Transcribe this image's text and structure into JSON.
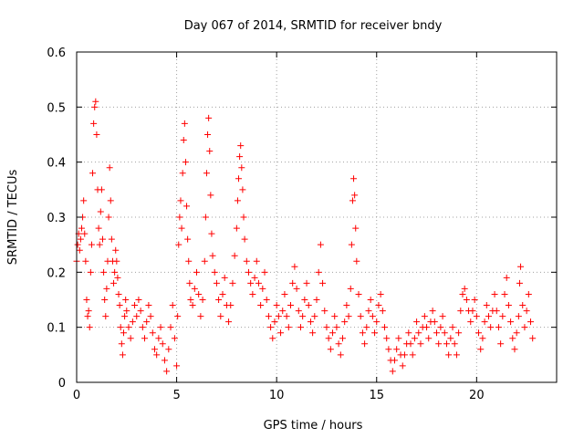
{
  "chart_data": {
    "type": "scatter",
    "title": "Day 067 of 2014, SRMTID for receiver bndy",
    "xlabel": "GPS time / hours",
    "ylabel": "SRMTID / TECUs",
    "xlim": [
      0,
      24
    ],
    "ylim": [
      0,
      0.6
    ],
    "xticks": [
      0,
      5,
      10,
      15,
      20
    ],
    "xtick_labels": [
      "0",
      "5",
      "10",
      "15",
      "20"
    ],
    "yticks": [
      0,
      0.1,
      0.2,
      0.3,
      0.4,
      0.5,
      0.6
    ],
    "ytick_labels": [
      "0",
      "0.1",
      "0.2",
      "0.3",
      "0.4",
      "0.5",
      "0.6"
    ],
    "grid": true,
    "marker": "plus",
    "series": [
      {
        "name": "SRMTID",
        "color": "#ff0000",
        "points": [
          [
            0.0,
            0.22
          ],
          [
            0.05,
            0.25
          ],
          [
            0.1,
            0.27
          ],
          [
            0.15,
            0.24
          ],
          [
            0.2,
            0.26
          ],
          [
            0.25,
            0.28
          ],
          [
            0.3,
            0.3
          ],
          [
            0.35,
            0.33
          ],
          [
            0.4,
            0.27
          ],
          [
            0.45,
            0.22
          ],
          [
            0.5,
            0.15
          ],
          [
            0.55,
            0.12
          ],
          [
            0.6,
            0.13
          ],
          [
            0.65,
            0.1
          ],
          [
            0.7,
            0.2
          ],
          [
            0.75,
            0.25
          ],
          [
            0.8,
            0.38
          ],
          [
            0.85,
            0.47
          ],
          [
            0.9,
            0.5
          ],
          [
            0.95,
            0.51
          ],
          [
            1.0,
            0.45
          ],
          [
            1.05,
            0.35
          ],
          [
            1.1,
            0.28
          ],
          [
            1.15,
            0.25
          ],
          [
            1.2,
            0.31
          ],
          [
            1.25,
            0.35
          ],
          [
            1.3,
            0.26
          ],
          [
            1.35,
            0.2
          ],
          [
            1.4,
            0.15
          ],
          [
            1.45,
            0.12
          ],
          [
            1.5,
            0.17
          ],
          [
            1.55,
            0.22
          ],
          [
            1.6,
            0.3
          ],
          [
            1.65,
            0.39
          ],
          [
            1.7,
            0.33
          ],
          [
            1.75,
            0.26
          ],
          [
            1.8,
            0.22
          ],
          [
            1.85,
            0.18
          ],
          [
            1.9,
            0.2
          ],
          [
            1.95,
            0.24
          ],
          [
            2.0,
            0.22
          ],
          [
            2.05,
            0.19
          ],
          [
            2.1,
            0.16
          ],
          [
            2.15,
            0.14
          ],
          [
            2.2,
            0.1
          ],
          [
            2.25,
            0.07
          ],
          [
            2.3,
            0.05
          ],
          [
            2.35,
            0.09
          ],
          [
            2.4,
            0.12
          ],
          [
            2.45,
            0.15
          ],
          [
            2.5,
            0.13
          ],
          [
            2.6,
            0.1
          ],
          [
            2.7,
            0.08
          ],
          [
            2.8,
            0.11
          ],
          [
            2.9,
            0.14
          ],
          [
            3.0,
            0.12
          ],
          [
            3.1,
            0.15
          ],
          [
            3.2,
            0.13
          ],
          [
            3.3,
            0.1
          ],
          [
            3.4,
            0.08
          ],
          [
            3.5,
            0.11
          ],
          [
            3.6,
            0.14
          ],
          [
            3.7,
            0.12
          ],
          [
            3.8,
            0.09
          ],
          [
            3.9,
            0.06
          ],
          [
            4.0,
            0.05
          ],
          [
            4.1,
            0.08
          ],
          [
            4.2,
            0.1
          ],
          [
            4.3,
            0.07
          ],
          [
            4.4,
            0.04
          ],
          [
            4.5,
            0.02
          ],
          [
            4.6,
            0.06
          ],
          [
            4.7,
            0.1
          ],
          [
            4.8,
            0.14
          ],
          [
            4.9,
            0.08
          ],
          [
            5.0,
            0.03
          ],
          [
            5.05,
            0.12
          ],
          [
            5.1,
            0.25
          ],
          [
            5.15,
            0.3
          ],
          [
            5.2,
            0.33
          ],
          [
            5.25,
            0.28
          ],
          [
            5.3,
            0.38
          ],
          [
            5.35,
            0.44
          ],
          [
            5.4,
            0.47
          ],
          [
            5.45,
            0.4
          ],
          [
            5.5,
            0.32
          ],
          [
            5.55,
            0.26
          ],
          [
            5.6,
            0.22
          ],
          [
            5.65,
            0.18
          ],
          [
            5.7,
            0.15
          ],
          [
            5.8,
            0.14
          ],
          [
            5.9,
            0.17
          ],
          [
            6.0,
            0.2
          ],
          [
            6.1,
            0.16
          ],
          [
            6.2,
            0.12
          ],
          [
            6.3,
            0.15
          ],
          [
            6.4,
            0.22
          ],
          [
            6.45,
            0.3
          ],
          [
            6.5,
            0.38
          ],
          [
            6.55,
            0.45
          ],
          [
            6.6,
            0.48
          ],
          [
            6.65,
            0.42
          ],
          [
            6.7,
            0.34
          ],
          [
            6.75,
            0.27
          ],
          [
            6.8,
            0.23
          ],
          [
            6.9,
            0.2
          ],
          [
            7.0,
            0.18
          ],
          [
            7.1,
            0.15
          ],
          [
            7.2,
            0.12
          ],
          [
            7.3,
            0.16
          ],
          [
            7.4,
            0.19
          ],
          [
            7.5,
            0.14
          ],
          [
            7.6,
            0.11
          ],
          [
            7.7,
            0.14
          ],
          [
            7.8,
            0.18
          ],
          [
            7.9,
            0.23
          ],
          [
            8.0,
            0.28
          ],
          [
            8.05,
            0.33
          ],
          [
            8.1,
            0.37
          ],
          [
            8.15,
            0.41
          ],
          [
            8.2,
            0.43
          ],
          [
            8.25,
            0.39
          ],
          [
            8.3,
            0.35
          ],
          [
            8.35,
            0.3
          ],
          [
            8.4,
            0.26
          ],
          [
            8.5,
            0.22
          ],
          [
            8.6,
            0.2
          ],
          [
            8.7,
            0.18
          ],
          [
            8.8,
            0.16
          ],
          [
            8.9,
            0.19
          ],
          [
            9.0,
            0.22
          ],
          [
            9.1,
            0.18
          ],
          [
            9.2,
            0.14
          ],
          [
            9.3,
            0.17
          ],
          [
            9.4,
            0.2
          ],
          [
            9.5,
            0.15
          ],
          [
            9.6,
            0.12
          ],
          [
            9.7,
            0.1
          ],
          [
            9.8,
            0.08
          ],
          [
            9.9,
            0.11
          ],
          [
            10.0,
            0.14
          ],
          [
            10.1,
            0.12
          ],
          [
            10.2,
            0.09
          ],
          [
            10.3,
            0.13
          ],
          [
            10.4,
            0.16
          ],
          [
            10.5,
            0.12
          ],
          [
            10.6,
            0.1
          ],
          [
            10.7,
            0.14
          ],
          [
            10.8,
            0.18
          ],
          [
            10.9,
            0.21
          ],
          [
            11.0,
            0.17
          ],
          [
            11.1,
            0.13
          ],
          [
            11.2,
            0.1
          ],
          [
            11.3,
            0.12
          ],
          [
            11.4,
            0.15
          ],
          [
            11.5,
            0.18
          ],
          [
            11.6,
            0.14
          ],
          [
            11.7,
            0.11
          ],
          [
            11.8,
            0.09
          ],
          [
            11.9,
            0.12
          ],
          [
            12.0,
            0.15
          ],
          [
            12.1,
            0.2
          ],
          [
            12.2,
            0.25
          ],
          [
            12.3,
            0.18
          ],
          [
            12.4,
            0.13
          ],
          [
            12.5,
            0.1
          ],
          [
            12.6,
            0.08
          ],
          [
            12.7,
            0.06
          ],
          [
            12.8,
            0.09
          ],
          [
            12.9,
            0.12
          ],
          [
            13.0,
            0.1
          ],
          [
            13.1,
            0.07
          ],
          [
            13.2,
            0.05
          ],
          [
            13.3,
            0.08
          ],
          [
            13.4,
            0.11
          ],
          [
            13.5,
            0.14
          ],
          [
            13.6,
            0.12
          ],
          [
            13.7,
            0.17
          ],
          [
            13.75,
            0.25
          ],
          [
            13.8,
            0.33
          ],
          [
            13.85,
            0.37
          ],
          [
            13.9,
            0.34
          ],
          [
            13.95,
            0.28
          ],
          [
            14.0,
            0.22
          ],
          [
            14.1,
            0.16
          ],
          [
            14.2,
            0.12
          ],
          [
            14.3,
            0.09
          ],
          [
            14.4,
            0.07
          ],
          [
            14.5,
            0.1
          ],
          [
            14.6,
            0.13
          ],
          [
            14.7,
            0.15
          ],
          [
            14.8,
            0.12
          ],
          [
            14.9,
            0.09
          ],
          [
            15.0,
            0.11
          ],
          [
            15.1,
            0.14
          ],
          [
            15.2,
            0.16
          ],
          [
            15.3,
            0.13
          ],
          [
            15.4,
            0.1
          ],
          [
            15.5,
            0.08
          ],
          [
            15.6,
            0.06
          ],
          [
            15.7,
            0.04
          ],
          [
            15.8,
            0.02
          ],
          [
            15.9,
            0.04
          ],
          [
            16.0,
            0.06
          ],
          [
            16.1,
            0.08
          ],
          [
            16.2,
            0.05
          ],
          [
            16.3,
            0.03
          ],
          [
            16.4,
            0.05
          ],
          [
            16.5,
            0.07
          ],
          [
            16.6,
            0.09
          ],
          [
            16.7,
            0.07
          ],
          [
            16.8,
            0.05
          ],
          [
            16.9,
            0.08
          ],
          [
            17.0,
            0.11
          ],
          [
            17.1,
            0.09
          ],
          [
            17.2,
            0.07
          ],
          [
            17.3,
            0.1
          ],
          [
            17.4,
            0.12
          ],
          [
            17.5,
            0.1
          ],
          [
            17.6,
            0.08
          ],
          [
            17.7,
            0.11
          ],
          [
            17.8,
            0.13
          ],
          [
            17.9,
            0.11
          ],
          [
            18.0,
            0.09
          ],
          [
            18.1,
            0.07
          ],
          [
            18.2,
            0.1
          ],
          [
            18.3,
            0.12
          ],
          [
            18.4,
            0.09
          ],
          [
            18.5,
            0.07
          ],
          [
            18.6,
            0.05
          ],
          [
            18.7,
            0.08
          ],
          [
            18.8,
            0.1
          ],
          [
            18.9,
            0.07
          ],
          [
            19.0,
            0.05
          ],
          [
            19.1,
            0.09
          ],
          [
            19.2,
            0.13
          ],
          [
            19.3,
            0.16
          ],
          [
            19.4,
            0.17
          ],
          [
            19.5,
            0.15
          ],
          [
            19.6,
            0.13
          ],
          [
            19.7,
            0.11
          ],
          [
            19.8,
            0.13
          ],
          [
            19.9,
            0.15
          ],
          [
            20.0,
            0.12
          ],
          [
            20.1,
            0.09
          ],
          [
            20.2,
            0.06
          ],
          [
            20.3,
            0.08
          ],
          [
            20.4,
            0.11
          ],
          [
            20.5,
            0.14
          ],
          [
            20.6,
            0.12
          ],
          [
            20.7,
            0.1
          ],
          [
            20.8,
            0.13
          ],
          [
            20.9,
            0.16
          ],
          [
            21.0,
            0.13
          ],
          [
            21.1,
            0.1
          ],
          [
            21.2,
            0.07
          ],
          [
            21.3,
            0.12
          ],
          [
            21.4,
            0.16
          ],
          [
            21.5,
            0.19
          ],
          [
            21.6,
            0.14
          ],
          [
            21.7,
            0.11
          ],
          [
            21.8,
            0.08
          ],
          [
            21.9,
            0.06
          ],
          [
            22.0,
            0.09
          ],
          [
            22.1,
            0.12
          ],
          [
            22.15,
            0.18
          ],
          [
            22.2,
            0.21
          ],
          [
            22.3,
            0.14
          ],
          [
            22.4,
            0.1
          ],
          [
            22.5,
            0.13
          ],
          [
            22.6,
            0.16
          ],
          [
            22.7,
            0.11
          ],
          [
            22.8,
            0.08
          ]
        ]
      }
    ]
  }
}
